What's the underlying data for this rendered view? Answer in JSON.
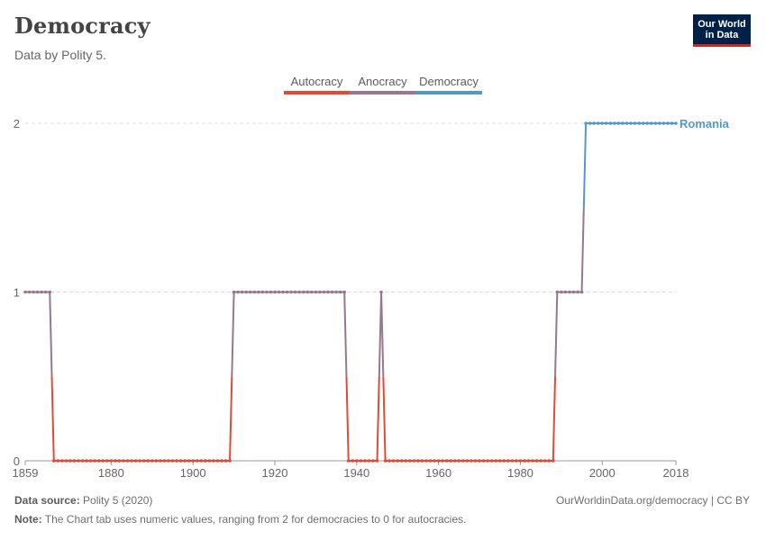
{
  "header": {
    "title": "Democracy",
    "subtitle": "Data by Polity 5."
  },
  "logo": {
    "line1": "Our World",
    "line2": "in Data"
  },
  "legend": [
    {
      "label": "Autocracy",
      "color": "#e24a33"
    },
    {
      "label": "Anocracy",
      "color": "#98778e"
    },
    {
      "label": "Democracy",
      "color": "#5299c7"
    }
  ],
  "footer": {
    "source_label": "Data source:",
    "source_value": "Polity 5 (2020)",
    "url": "OurWorldinData.org/democracy | CC BY",
    "note_label": "Note:",
    "note_value": "The Chart tab uses numeric values, ranging from 2 for democracies to 0 for autocracies."
  },
  "chart_data": {
    "type": "line",
    "title": "Democracy",
    "subtitle": "Data by Polity 5.",
    "xlabel": "",
    "ylabel": "",
    "xlim": [
      1859,
      2018
    ],
    "ylim": [
      0,
      2
    ],
    "x_ticks": [
      "1859",
      "1880",
      "1900",
      "1920",
      "1940",
      "1960",
      "1980",
      "2000",
      "2018"
    ],
    "y_ticks": [
      "0",
      "1",
      "2"
    ],
    "series_label": "Romania",
    "segments": [
      {
        "x0": 1859,
        "x1": 1865,
        "value": 1
      },
      {
        "x0": 1866,
        "x1": 1909,
        "value": 0
      },
      {
        "x0": 1910,
        "x1": 1937,
        "value": 1
      },
      {
        "x0": 1938,
        "x1": 1945,
        "value": 0
      },
      {
        "x0": 1946,
        "x1": 1946,
        "value": 1
      },
      {
        "x0": 1947,
        "x1": 1988,
        "value": 0
      },
      {
        "x0": 1989,
        "x1": 1995,
        "value": 1
      },
      {
        "x0": 1996,
        "x1": 2018,
        "value": 2
      }
    ],
    "value_colors": {
      "0": "#e24a33",
      "1": "#98778e",
      "2": "#5299c7"
    },
    "grid": true
  }
}
